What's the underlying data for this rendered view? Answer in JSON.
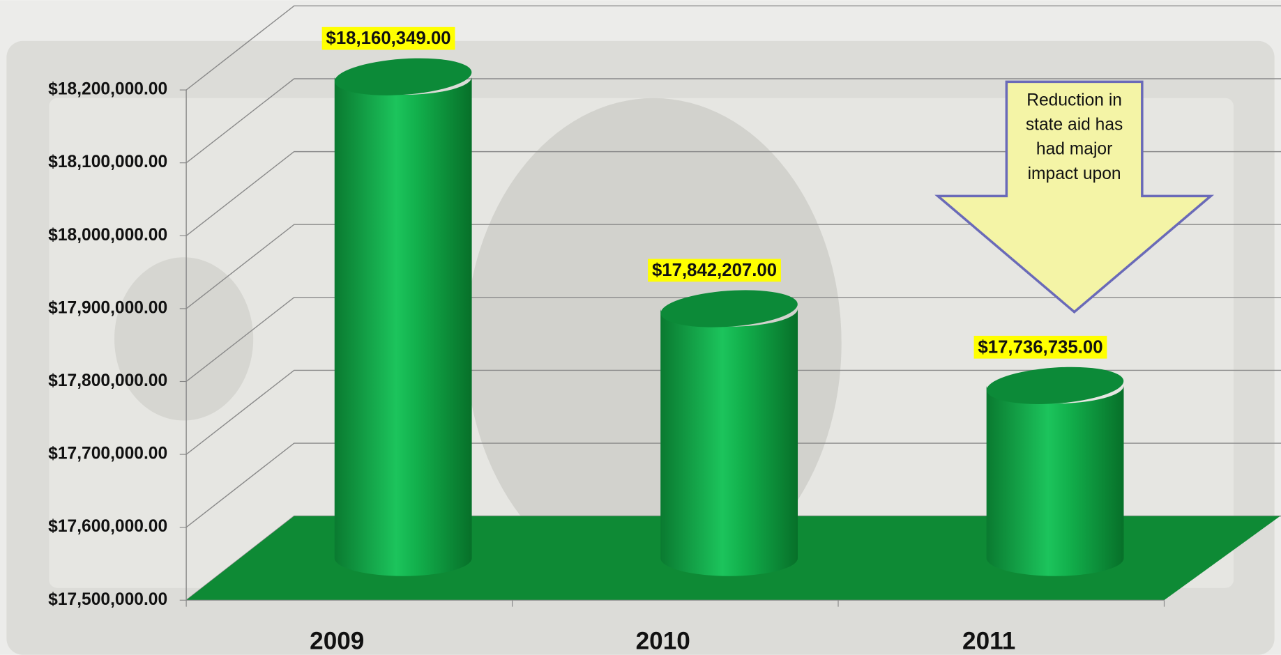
{
  "chart_data": {
    "type": "cylinder-bar",
    "categories": [
      "2009",
      "2010",
      "2011"
    ],
    "values": [
      18160349,
      17842207,
      17736735
    ],
    "value_labels": [
      "$18,160,349.00",
      "$17,842,207.00",
      "$17,736,735.00"
    ],
    "color": "#12a848",
    "ylim": [
      17500000,
      18200000
    ],
    "yticks": [
      {
        "value": 17500000,
        "label": "$17,500,000.00"
      },
      {
        "value": 17600000,
        "label": "$17,600,000.00"
      },
      {
        "value": 17700000,
        "label": "$17,700,000.00"
      },
      {
        "value": 17800000,
        "label": "$17,800,000.00"
      },
      {
        "value": 17900000,
        "label": "$17,900,000.00"
      },
      {
        "value": 18000000,
        "label": "$18,000,000.00"
      },
      {
        "value": 18100000,
        "label": "$18,100,000.00"
      },
      {
        "value": 18200000,
        "label": "$18,200,000.00"
      }
    ],
    "grid": true,
    "annotation": "Reduction in state aid has had major impact upon"
  }
}
